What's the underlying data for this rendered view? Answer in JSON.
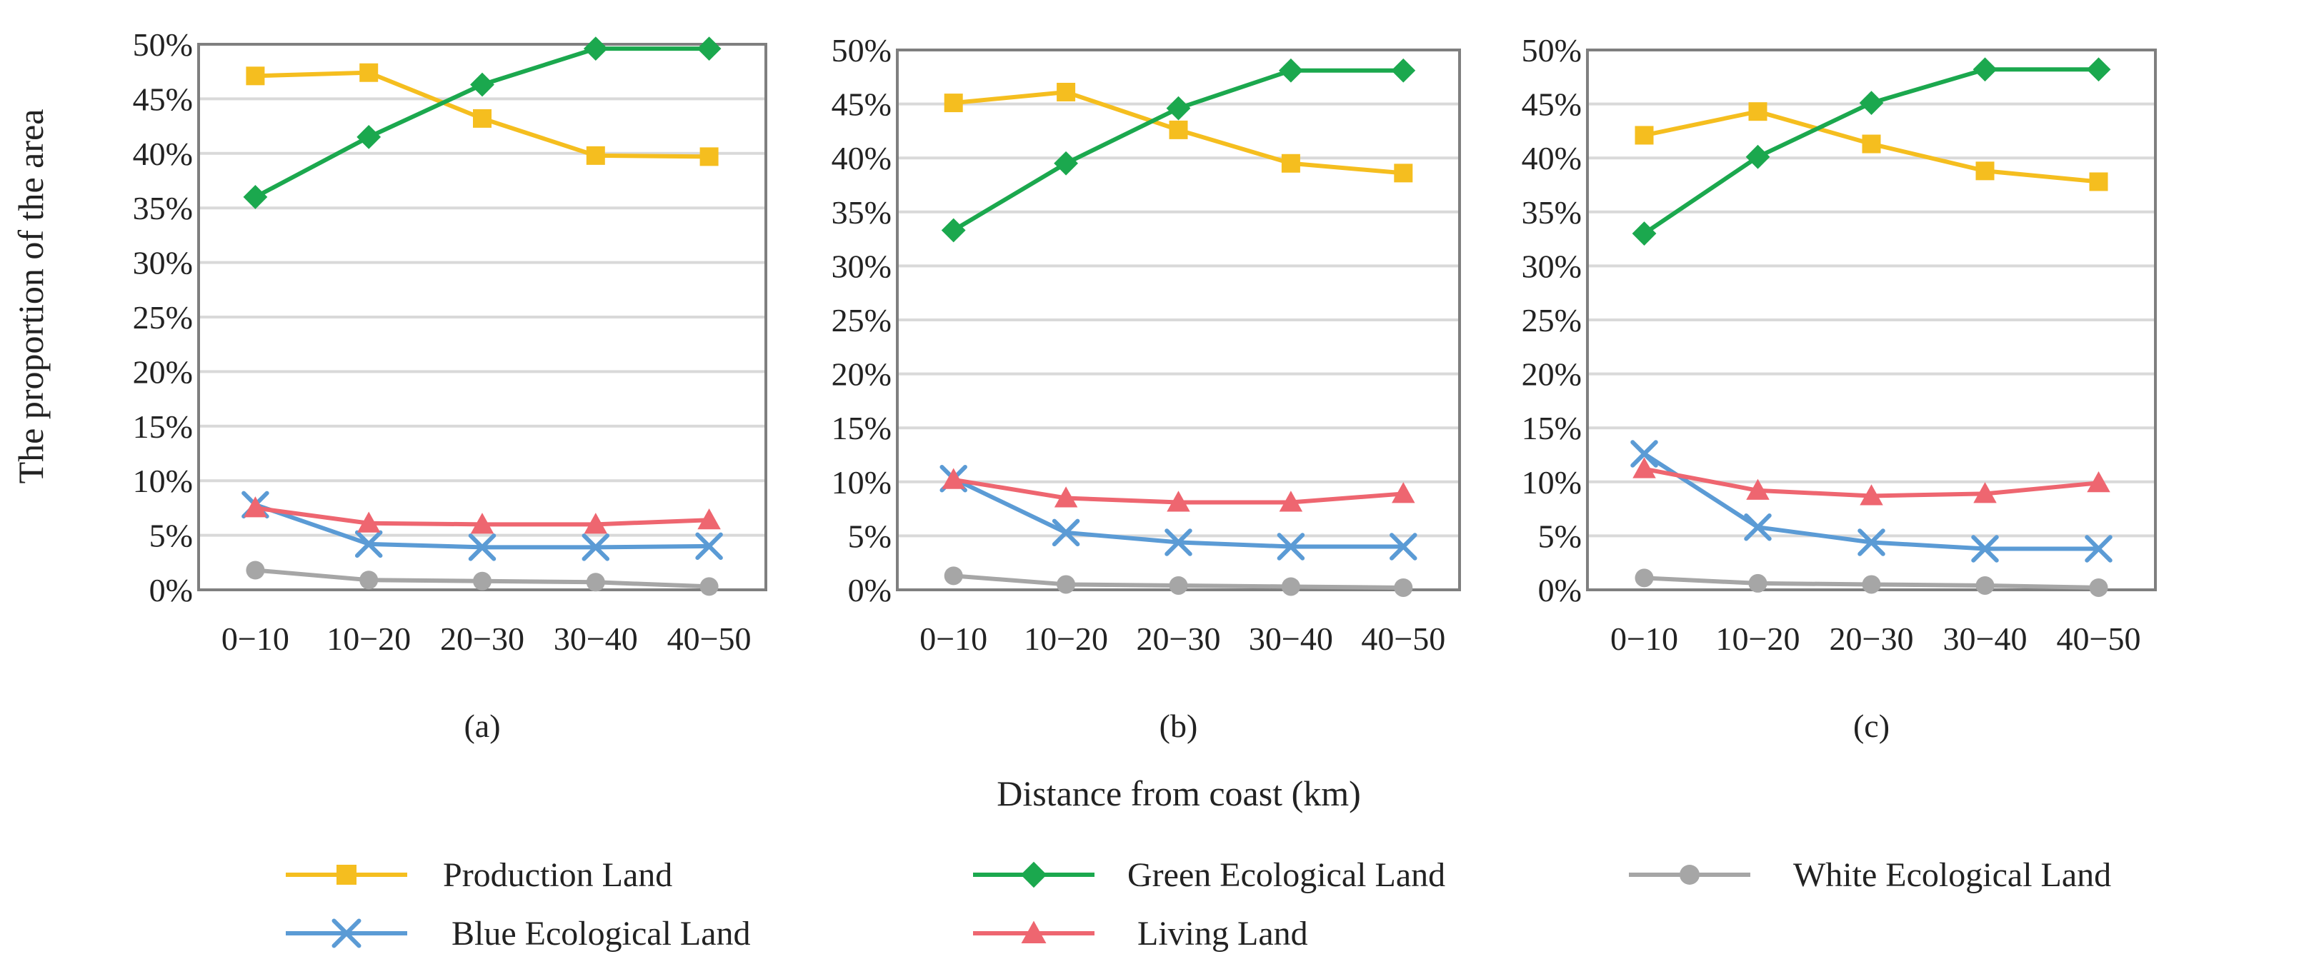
{
  "figure": {
    "ylabel": "The proportion of the area",
    "xlabel": "Distance from coast (km)"
  },
  "chart_data": [
    {
      "type": "line",
      "panel_label": "(a)",
      "categories": [
        "0−10",
        "10−20",
        "20−30",
        "30−40",
        "40−50"
      ],
      "ylim": [
        0,
        50
      ],
      "yticks": [
        "0%",
        "5%",
        "10%",
        "15%",
        "20%",
        "25%",
        "30%",
        "35%",
        "40%",
        "45%",
        "50%"
      ],
      "grid": true,
      "series": [
        {
          "name": "Production Land",
          "values": [
            47.1,
            47.4,
            43.2,
            39.8,
            39.7
          ]
        },
        {
          "name": "Green Ecological Land",
          "values": [
            36.0,
            41.5,
            46.3,
            49.6,
            49.6
          ]
        },
        {
          "name": "White Ecological Land",
          "values": [
            1.8,
            0.9,
            0.8,
            0.7,
            0.3
          ]
        },
        {
          "name": "Blue Ecological Land",
          "values": [
            7.8,
            4.2,
            3.9,
            3.9,
            4.0
          ]
        },
        {
          "name": "Living Land",
          "values": [
            7.5,
            6.1,
            6.0,
            6.0,
            6.4
          ]
        }
      ]
    },
    {
      "type": "line",
      "panel_label": "(b)",
      "categories": [
        "0−10",
        "10−20",
        "20−30",
        "30−40",
        "40−50"
      ],
      "ylim": [
        0,
        50
      ],
      "yticks": [
        "0%",
        "5%",
        "10%",
        "15%",
        "20%",
        "25%",
        "30%",
        "35%",
        "40%",
        "45%",
        "50%"
      ],
      "grid": true,
      "series": [
        {
          "name": "Production Land",
          "values": [
            45.1,
            46.1,
            42.6,
            39.5,
            38.6
          ]
        },
        {
          "name": "Green Ecological Land",
          "values": [
            33.3,
            39.5,
            44.6,
            48.1,
            48.1
          ]
        },
        {
          "name": "White Ecological Land",
          "values": [
            1.3,
            0.5,
            0.4,
            0.3,
            0.2
          ]
        },
        {
          "name": "Blue Ecological Land",
          "values": [
            10.3,
            5.3,
            4.4,
            4.0,
            4.0
          ]
        },
        {
          "name": "Living Land",
          "values": [
            10.2,
            8.5,
            8.1,
            8.1,
            8.9
          ]
        }
      ]
    },
    {
      "type": "line",
      "panel_label": "(c)",
      "categories": [
        "0−10",
        "10−20",
        "20−30",
        "30−40",
        "40−50"
      ],
      "ylim": [
        0,
        50
      ],
      "yticks": [
        "0%",
        "5%",
        "10%",
        "15%",
        "20%",
        "25%",
        "30%",
        "35%",
        "40%",
        "45%",
        "50%"
      ],
      "grid": true,
      "series": [
        {
          "name": "Production Land",
          "values": [
            42.1,
            44.3,
            41.3,
            38.8,
            37.8
          ]
        },
        {
          "name": "Green Ecological Land",
          "values": [
            33.0,
            40.1,
            45.1,
            48.2,
            48.2
          ]
        },
        {
          "name": "White Ecological Land",
          "values": [
            1.1,
            0.6,
            0.5,
            0.4,
            0.2
          ]
        },
        {
          "name": "Blue Ecological Land",
          "values": [
            12.6,
            5.8,
            4.4,
            3.8,
            3.8
          ]
        },
        {
          "name": "Living Land",
          "values": [
            11.2,
            9.2,
            8.7,
            8.9,
            9.9
          ]
        }
      ]
    }
  ],
  "legend": {
    "placement": "bottom",
    "items": [
      {
        "name": "Production Land",
        "color": "#F5BE1F",
        "marker": "square"
      },
      {
        "name": "Green Ecological Land",
        "color": "#1BA84E",
        "marker": "diamond"
      },
      {
        "name": "White Ecological Land",
        "color": "#A6A6A6",
        "marker": "circle"
      },
      {
        "name": "Blue Ecological Land",
        "color": "#5B9BD5",
        "marker": "x"
      },
      {
        "name": "Living Land",
        "color": "#EE6670",
        "marker": "triangle"
      }
    ]
  }
}
